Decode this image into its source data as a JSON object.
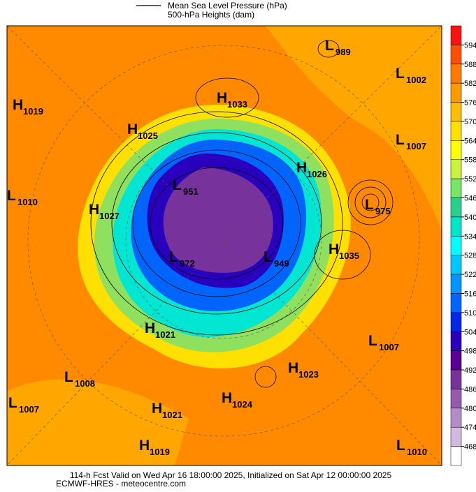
{
  "legend": {
    "pressure": "Mean Sea Level Pressure (hPa)",
    "heights": "500-hPa Heights (dam)"
  },
  "colorbar": {
    "ticks": [
      594,
      588,
      582,
      576,
      570,
      564,
      558,
      552,
      546,
      540,
      534,
      528,
      522,
      516,
      510,
      504,
      498,
      492,
      486,
      480,
      474,
      468
    ],
    "colors": [
      "#ff1010",
      "#ff5000",
      "#ff7a00",
      "#ff9a00",
      "#ffbe00",
      "#ffe000",
      "#ffff00",
      "#c8f53c",
      "#78e664",
      "#28d28c",
      "#00e6c8",
      "#00ffff",
      "#00c8ff",
      "#0096ff",
      "#0064ff",
      "#0028e6",
      "#2800be",
      "#5a0096",
      "#78329b",
      "#965aaf",
      "#b48cc8",
      "#d2b9e1",
      "#ffffff"
    ]
  },
  "centers": [
    {
      "kind": "H",
      "value": 1019
    },
    {
      "kind": "H",
      "value": 1033
    },
    {
      "kind": "L",
      "value": 989
    },
    {
      "kind": "L",
      "value": 1002
    },
    {
      "kind": "H",
      "value": 1025
    },
    {
      "kind": "L",
      "value": 1007
    },
    {
      "kind": "H",
      "value": 1026
    },
    {
      "kind": "L",
      "value": 951
    },
    {
      "kind": "L",
      "value": 1010
    },
    {
      "kind": "L",
      "value": 975
    },
    {
      "kind": "H",
      "value": 1027
    },
    {
      "kind": "H",
      "value": 1035
    },
    {
      "kind": "L",
      "value": 972
    },
    {
      "kind": "L",
      "value": 949
    },
    {
      "kind": "H",
      "value": 1021
    },
    {
      "kind": "L",
      "value": 1007
    },
    {
      "kind": "H",
      "value": 1023
    },
    {
      "kind": "L",
      "value": 1008
    },
    {
      "kind": "H",
      "value": 1024
    },
    {
      "kind": "L",
      "value": 1007
    },
    {
      "kind": "H",
      "value": 1021
    },
    {
      "kind": "H",
      "value": 1019
    },
    {
      "kind": "L",
      "value": 1010
    }
  ],
  "footer": {
    "line1": "114-h Fcst Valid on Wed Apr 16 18:00:00 2025, Initialized on Sat Apr 12 00:00:00 2025",
    "line2": "ECMWF-HRES  - meteocentre.com"
  }
}
